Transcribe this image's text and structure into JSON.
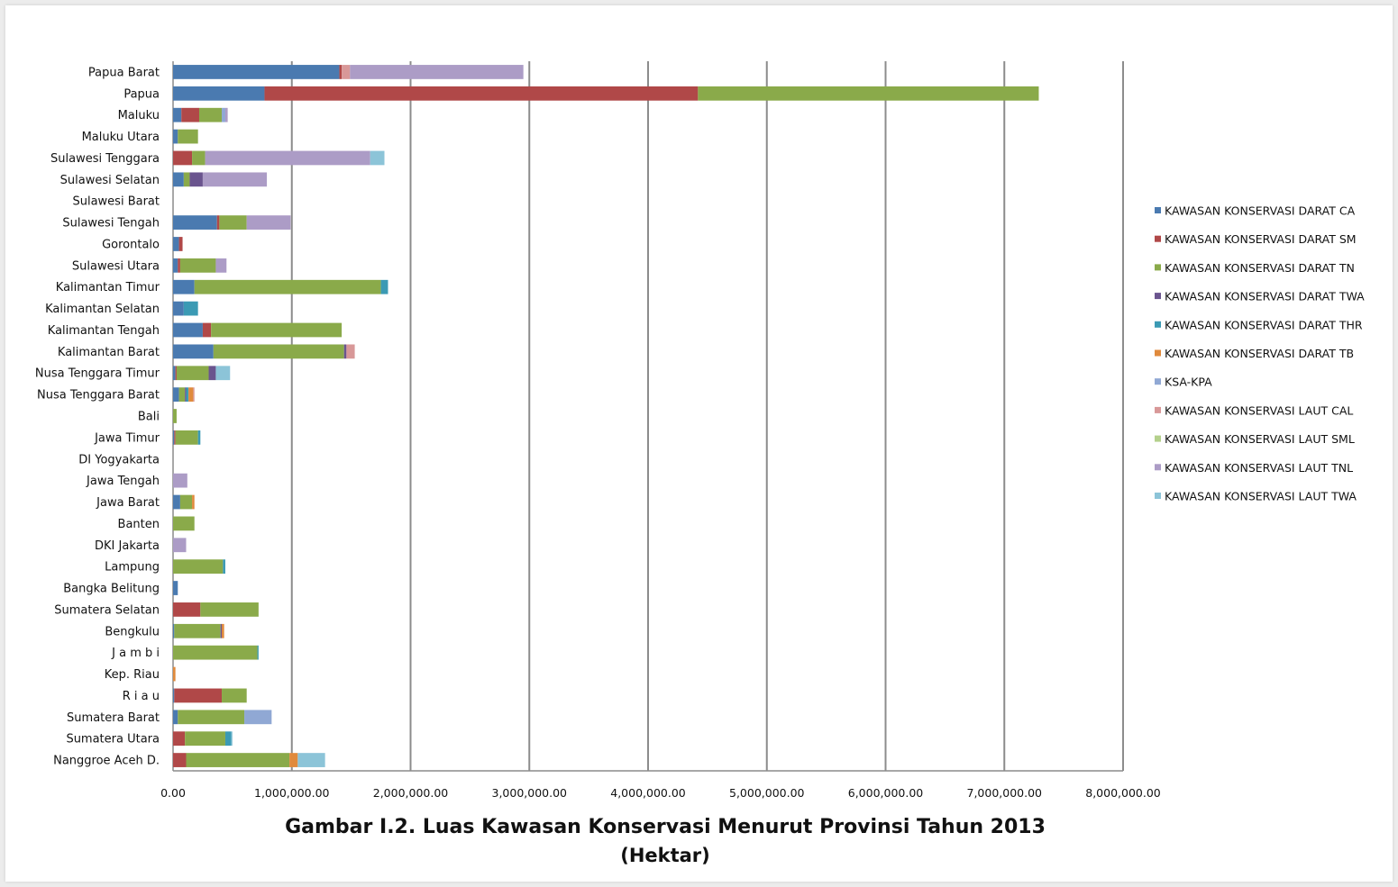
{
  "caption": {
    "line1": "Gambar I.2. Luas Kawasan Konservasi Menurut Provinsi Tahun 2013",
    "line2": "(Hektar)"
  },
  "chart_data": {
    "type": "bar",
    "orientation": "horizontal",
    "stacked": true,
    "title": "",
    "xlabel": "",
    "ylabel": "",
    "xlim": [
      0,
      8000000
    ],
    "x_ticks": [
      "0.00",
      "1,000,000.00",
      "2,000,000.00",
      "3,000,000.00",
      "4,000,000.00",
      "5,000,000.00",
      "6,000,000.00",
      "7,000,000.00",
      "8,000,000.00"
    ],
    "grid": "vertical",
    "legend_position": "right",
    "categories": [
      "Papua Barat",
      "Papua",
      "Maluku",
      "Maluku Utara",
      "Sulawesi Tenggara",
      "Sulawesi Selatan",
      "Sulawesi Barat",
      "Sulawesi Tengah",
      "Gorontalo",
      "Sulawesi Utara",
      "Kalimantan Timur",
      "Kalimantan Selatan",
      "Kalimantan Tengah",
      "Kalimantan Barat",
      "Nusa Tenggara Timur",
      "Nusa Tenggara Barat",
      "Bali",
      "Jawa Timur",
      "DI Yogyakarta",
      "Jawa Tengah",
      "Jawa Barat",
      "Banten",
      "DKI Jakarta",
      "Lampung",
      "Bangka Belitung",
      "Sumatera Selatan",
      "Bengkulu",
      "J a m b i",
      "Kep. Riau",
      "R i a u",
      "Sumatera Barat",
      "Sumatera Utara",
      "Nanggroe Aceh D."
    ],
    "series": [
      {
        "name": "KAWASAN KONSERVASI DARAT CA",
        "color": "#4a7ab0",
        "values": [
          1400000,
          770000,
          70000,
          40000,
          0,
          90000,
          0,
          370000,
          50000,
          40000,
          180000,
          90000,
          250000,
          340000,
          20000,
          50000,
          0,
          10000,
          0,
          0,
          60000,
          0,
          0,
          0,
          40000,
          0,
          10000,
          0,
          0,
          10000,
          40000,
          0,
          0
        ]
      },
      {
        "name": "KAWASAN KONSERVASI DARAT SM",
        "color": "#b04848",
        "values": [
          20000,
          3650000,
          150000,
          0,
          160000,
          0,
          0,
          20000,
          30000,
          20000,
          0,
          0,
          70000,
          0,
          10000,
          0,
          0,
          10000,
          0,
          0,
          0,
          0,
          0,
          0,
          0,
          230000,
          0,
          0,
          0,
          400000,
          0,
          100000,
          110000
        ]
      },
      {
        "name": "KAWASAN KONSERVASI DARAT TN",
        "color": "#8aaa4a",
        "values": [
          0,
          2870000,
          190000,
          170000,
          110000,
          50000,
          0,
          230000,
          0,
          300000,
          1570000,
          0,
          1100000,
          1100000,
          270000,
          50000,
          30000,
          190000,
          0,
          0,
          100000,
          180000,
          0,
          420000,
          0,
          490000,
          390000,
          710000,
          0,
          210000,
          560000,
          340000,
          870000
        ]
      },
      {
        "name": "KAWASAN KONSERVASI DARAT TWA",
        "color": "#6a548e",
        "values": [
          0,
          0,
          0,
          0,
          0,
          110000,
          0,
          0,
          0,
          0,
          0,
          0,
          0,
          20000,
          60000,
          10000,
          0,
          0,
          0,
          0,
          0,
          0,
          0,
          0,
          0,
          0,
          10000,
          0,
          0,
          0,
          0,
          0,
          0
        ]
      },
      {
        "name": "KAWASAN KONSERVASI DARAT THR",
        "color": "#3b9ab4",
        "values": [
          0,
          0,
          0,
          0,
          0,
          0,
          0,
          0,
          0,
          0,
          60000,
          120000,
          0,
          0,
          0,
          20000,
          0,
          20000,
          0,
          0,
          0,
          0,
          0,
          20000,
          0,
          0,
          0,
          10000,
          0,
          0,
          0,
          50000,
          0
        ]
      },
      {
        "name": "KAWASAN KONSERVASI DARAT TB",
        "color": "#e08a3c",
        "values": [
          0,
          0,
          0,
          0,
          0,
          0,
          0,
          0,
          0,
          0,
          0,
          0,
          0,
          0,
          0,
          40000,
          0,
          0,
          0,
          0,
          20000,
          0,
          0,
          0,
          0,
          0,
          20000,
          0,
          20000,
          0,
          0,
          0,
          70000
        ]
      },
      {
        "name": "KSA-KPA",
        "color": "#90a8d4",
        "values": [
          0,
          0,
          30000,
          0,
          0,
          0,
          0,
          0,
          0,
          0,
          0,
          0,
          0,
          0,
          0,
          0,
          0,
          0,
          0,
          0,
          0,
          0,
          0,
          0,
          0,
          0,
          0,
          0,
          0,
          0,
          230000,
          0,
          0
        ]
      },
      {
        "name": "KAWASAN KONSERVASI LAUT CAL",
        "color": "#d89898",
        "values": [
          70000,
          0,
          0,
          0,
          0,
          0,
          0,
          0,
          0,
          0,
          0,
          0,
          0,
          70000,
          0,
          10000,
          0,
          0,
          0,
          0,
          0,
          0,
          0,
          0,
          0,
          0,
          0,
          0,
          0,
          0,
          0,
          0,
          0
        ]
      },
      {
        "name": "KAWASAN KONSERVASI LAUT SML",
        "color": "#b4d08c",
        "values": [
          0,
          0,
          0,
          0,
          0,
          0,
          0,
          0,
          0,
          0,
          0,
          0,
          0,
          0,
          0,
          0,
          0,
          0,
          0,
          0,
          0,
          0,
          0,
          0,
          0,
          0,
          0,
          0,
          0,
          0,
          0,
          0,
          0
        ]
      },
      {
        "name": "KAWASAN KONSERVASI LAUT TNL",
        "color": "#ac9cc6",
        "values": [
          1460000,
          0,
          20000,
          0,
          1390000,
          540000,
          0,
          370000,
          0,
          90000,
          0,
          0,
          0,
          0,
          0,
          0,
          0,
          0,
          0,
          120000,
          0,
          0,
          110000,
          0,
          0,
          0,
          0,
          0,
          0,
          0,
          0,
          0,
          0
        ]
      },
      {
        "name": "KAWASAN KONSERVASI LAUT TWA",
        "color": "#8cc4d8",
        "values": [
          0,
          0,
          0,
          0,
          120000,
          0,
          0,
          0,
          0,
          0,
          0,
          0,
          0,
          0,
          120000,
          0,
          0,
          0,
          0,
          0,
          0,
          0,
          0,
          0,
          0,
          0,
          0,
          0,
          0,
          0,
          0,
          10000,
          230000
        ]
      }
    ]
  }
}
